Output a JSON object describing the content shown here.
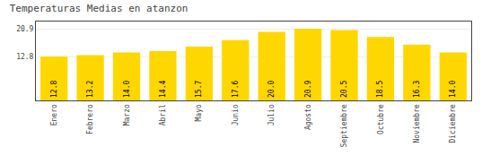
{
  "chart_data": {
    "type": "bar",
    "title": "Temperaturas Medias en atanzon",
    "categories": [
      "Enero",
      "Febrero",
      "Marzo",
      "Abril",
      "Mayo",
      "Junio",
      "Julio",
      "Agosto",
      "Septiembre",
      "Octubre",
      "Noviembre",
      "Diciembre"
    ],
    "values": [
      12.8,
      13.2,
      14.0,
      14.4,
      15.7,
      17.6,
      20.0,
      20.9,
      20.5,
      18.5,
      16.3,
      14.0
    ],
    "value_labels": [
      "12.8",
      "13.2",
      "14.0",
      "14.4",
      "15.7",
      "17.6",
      "20.0",
      "20.9",
      "20.5",
      "18.5",
      "16.3",
      "14.0"
    ],
    "color": "#FFD700",
    "ylim": [
      0.0,
      23.0
    ],
    "yticks": [
      12.8,
      20.9
    ],
    "grid": true,
    "data_labels": true
  }
}
